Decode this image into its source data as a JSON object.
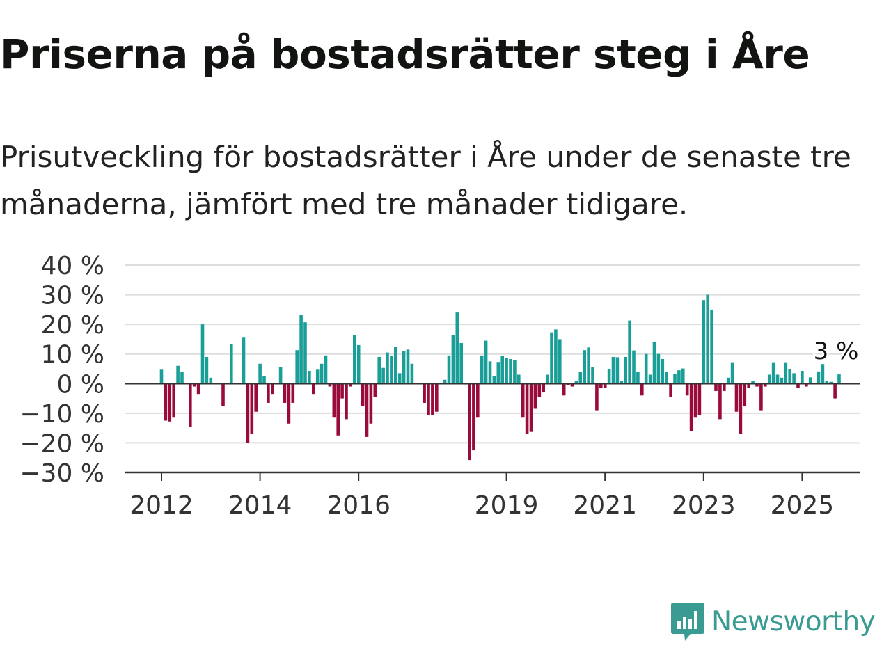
{
  "title": "Priserna på bostadsrätter steg i Åre",
  "subtitle": "Prisutveckling för bostadsrätter i Åre under de senaste tre månaderna, jämfört med tre månader tidigare.",
  "logo": {
    "text": "Newsworthy",
    "icon": "newsworthy-bar-chart-icon",
    "color": "#3a9b92"
  },
  "chart_data": {
    "type": "bar",
    "y_tick_labels": [
      "40 %",
      "30 %",
      "20 %",
      "10 %",
      "0 %",
      "−10 %",
      "−20 %",
      "−30 %"
    ],
    "y_ticks": [
      40,
      30,
      20,
      10,
      0,
      -10,
      -20,
      -30
    ],
    "ylim": [
      -30,
      40
    ],
    "x_tick_labels": [
      "2012",
      "2014",
      "2016",
      "2019",
      "2021",
      "2023",
      "2025"
    ],
    "x_tick_positions": [
      "2012-01",
      "2014-01",
      "2016-01",
      "2019-01",
      "2021-01",
      "2023-01",
      "2025-01"
    ],
    "x_start": "2011-09",
    "grid": true,
    "colors": {
      "positive": "#1a9e98",
      "negative": "#9a0b3c",
      "grid": "#dddddd",
      "axis": "#333333"
    },
    "annotation": {
      "text": "3 %",
      "at": "2025-05"
    },
    "series": [
      {
        "values": [
          0,
          0,
          0,
          0,
          4.7,
          -12.5,
          -12.8,
          -11.5,
          6,
          4,
          0,
          -14.5,
          -1,
          -3.5,
          20,
          9,
          2,
          0,
          0,
          -7.5,
          0,
          13.3,
          0,
          0,
          15.5,
          -20,
          -17,
          -9.5,
          6.7,
          2.5,
          -6.5,
          -3.5,
          0,
          5.5,
          -6.5,
          -13.5,
          -6.5,
          11.3,
          23.3,
          20.7,
          4.3,
          -3.5,
          4.7,
          6.7,
          9.5,
          -1,
          -11.5,
          -17.5,
          -5,
          -12,
          -1,
          16.5,
          13,
          -7.5,
          -18,
          -13.5,
          -4.5,
          9,
          5.3,
          10.5,
          9.3,
          12.3,
          3.5,
          11,
          11.5,
          6.7,
          0,
          0,
          -6.5,
          -10.5,
          -10.5,
          -9.5,
          0,
          1.3,
          9.5,
          16.5,
          24,
          13.7,
          -0.3,
          -25.8,
          -22.5,
          -11.5,
          9.5,
          14.5,
          7.5,
          2.5,
          7.3,
          9.3,
          8.7,
          8.3,
          7.9,
          3,
          -11.5,
          -17,
          -16.3,
          -8.5,
          -4.5,
          -3,
          3,
          17.3,
          18.3,
          15,
          -4,
          -0.5,
          -1,
          1,
          3.9,
          11.3,
          12.2,
          5.7,
          -9,
          -1.5,
          -1.5,
          5,
          9,
          8.9,
          1,
          9,
          21.3,
          11.2,
          4,
          -4,
          10,
          3,
          14,
          10,
          8.3,
          4,
          -4.5,
          3.3,
          4.5,
          5.1,
          -4,
          -16,
          -11.5,
          -10.5,
          28.2,
          30,
          25,
          -2.5,
          -12,
          -2.5,
          2,
          7.2,
          -9.5,
          -17,
          -7.7,
          -1.5,
          1,
          -1,
          -9,
          -1,
          3,
          7.2,
          3,
          2,
          7.2,
          5,
          3.5,
          -1.5,
          4.3,
          -1,
          2.1,
          0,
          4.1,
          6.6,
          0.9,
          0.6,
          -5,
          3.1
        ]
      }
    ]
  }
}
